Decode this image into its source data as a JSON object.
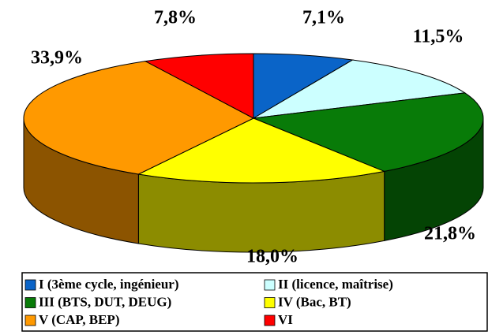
{
  "chart_data": {
    "type": "pie3d",
    "categories": [
      "I (3ème cycle, ingénieur)",
      "II (licence, maîtrise)",
      "III (BTS, DUT, DEUG)",
      "IV (Bac, BT)",
      "V (CAP, BEP)",
      "VI"
    ],
    "values": [
      7.1,
      11.5,
      21.8,
      18.0,
      33.9,
      7.8
    ],
    "value_labels": [
      "7,1%",
      "11,5%",
      "21,8%",
      "18,0%",
      "33,9%",
      "7,8%"
    ],
    "colors": [
      "#0a64c8",
      "#ccffff",
      "#087b08",
      "#ffff00",
      "#ff9900",
      "#ff0000"
    ],
    "legend": "bottom"
  }
}
